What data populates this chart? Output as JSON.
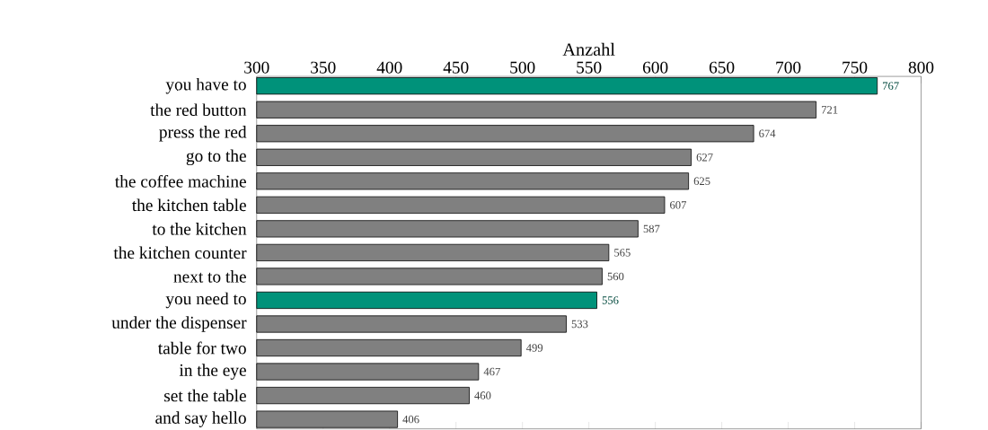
{
  "chart_data": {
    "type": "bar",
    "orientation": "horizontal",
    "xlabel": "Anzahl",
    "categories": [
      "you have to",
      "the red button",
      "press the red",
      "go to the",
      "the coffee machine",
      "the kitchen table",
      "to the kitchen",
      "the kitchen counter",
      "next to the",
      "you need to",
      "under the dispenser",
      "table for two",
      "in the eye",
      "set the table",
      "and say hello"
    ],
    "values": [
      767,
      721,
      674,
      627,
      625,
      607,
      587,
      565,
      560,
      556,
      533,
      499,
      467,
      460,
      406
    ],
    "colors": [
      "#00927a",
      "#808080",
      "#808080",
      "#808080",
      "#808080",
      "#808080",
      "#808080",
      "#808080",
      "#808080",
      "#00927a",
      "#808080",
      "#808080",
      "#808080",
      "#808080",
      "#808080"
    ],
    "xlim": [
      300,
      800
    ],
    "xticks": [
      300,
      350,
      400,
      450,
      500,
      550,
      600,
      650,
      700,
      750,
      800
    ],
    "data_labels": true
  }
}
